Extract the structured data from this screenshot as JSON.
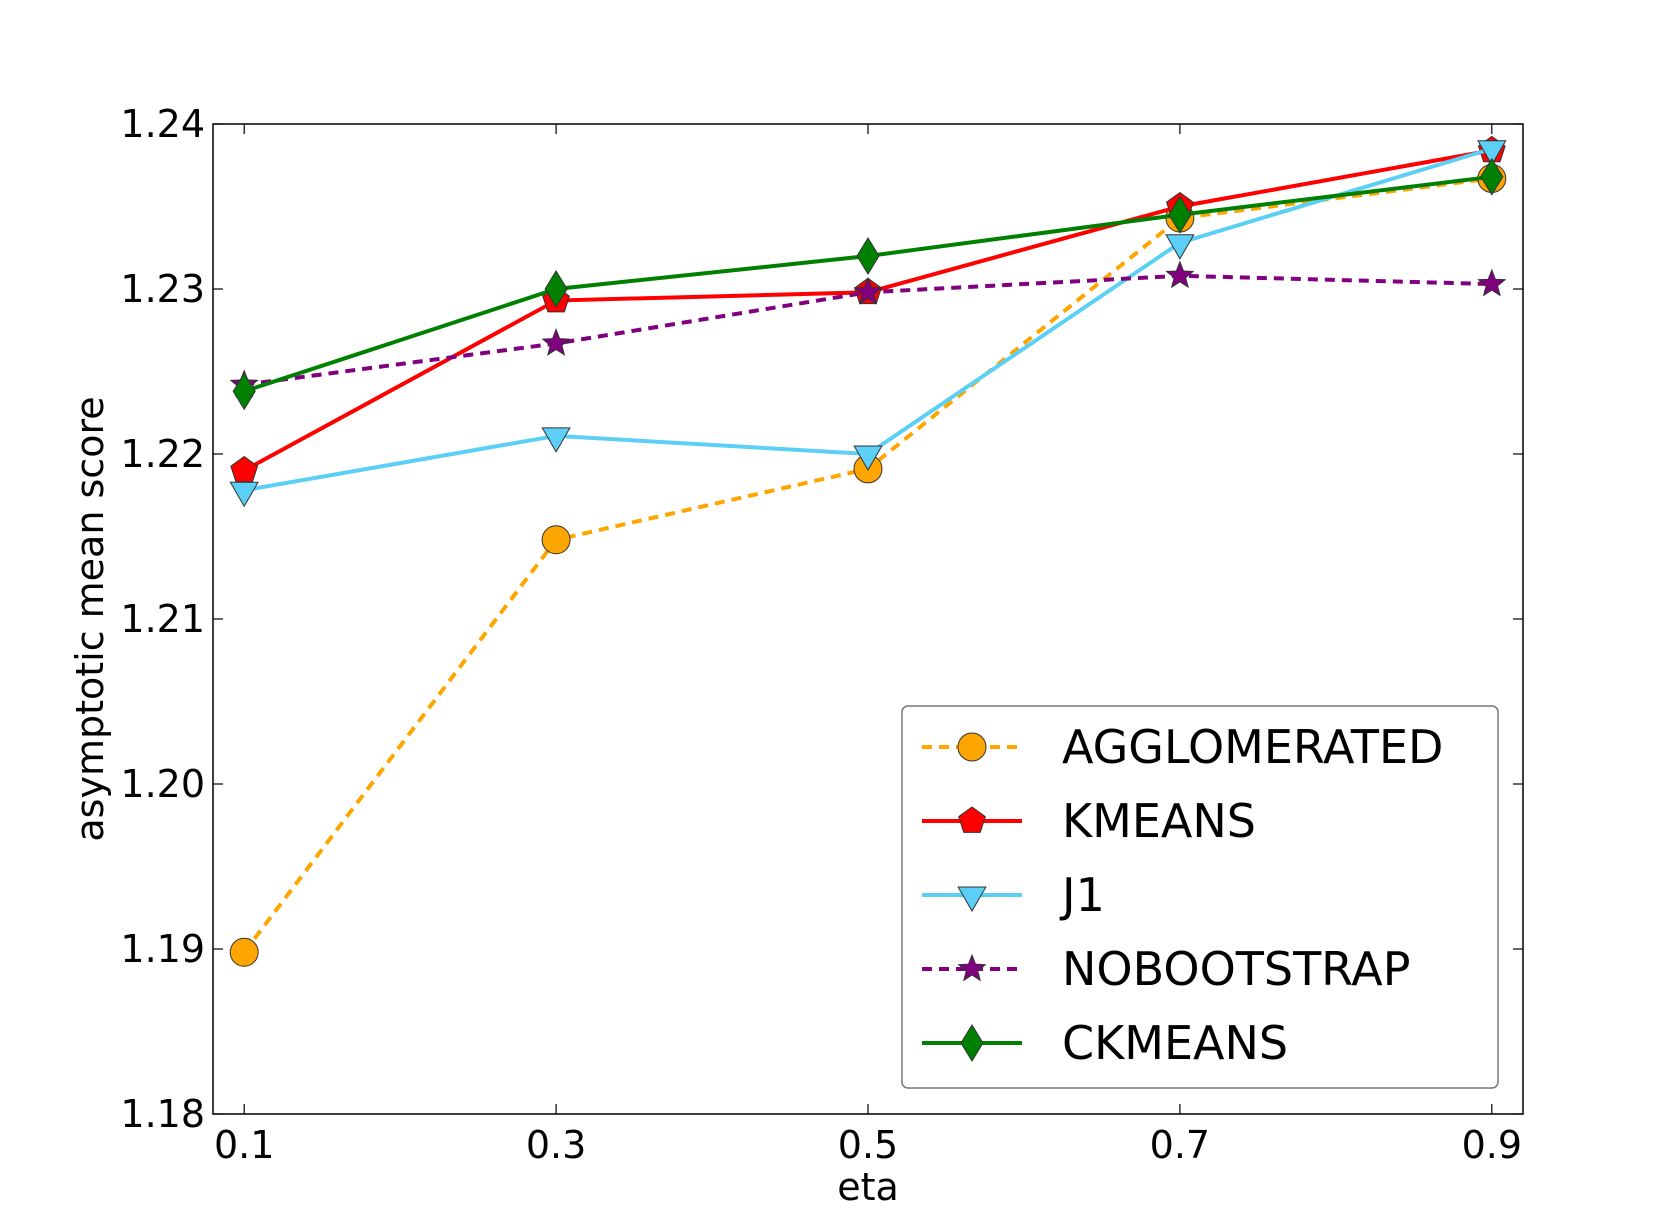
{
  "chart_data": {
    "type": "line",
    "xlabel": "eta",
    "ylabel": "asymptotic mean score",
    "x": [
      0.1,
      0.3,
      0.5,
      0.7,
      0.9
    ],
    "x_tick_labels": [
      "0.1",
      "0.3",
      "0.5",
      "0.7",
      "0.9"
    ],
    "xlim": [
      0.08,
      0.92
    ],
    "ylim": [
      1.18,
      1.24
    ],
    "y_ticks": [
      1.18,
      1.19,
      1.2,
      1.21,
      1.22,
      1.23,
      1.24
    ],
    "y_tick_labels": [
      "1.18",
      "1.19",
      "1.20",
      "1.21",
      "1.22",
      "1.23",
      "1.24"
    ],
    "grid": false,
    "legend_position": "bottom-right",
    "series": [
      {
        "name": "AGGLOMERATED",
        "values": [
          1.1898,
          1.2148,
          1.2191,
          1.2343,
          1.2367
        ],
        "color": "#FFA500",
        "linestyle": "dashed",
        "marker": "circle"
      },
      {
        "name": "KMEANS",
        "values": [
          1.219,
          1.2293,
          1.2298,
          1.235,
          1.2384
        ],
        "color": "#FF0000",
        "linestyle": "solid",
        "marker": "pentagon"
      },
      {
        "name": "J1",
        "values": [
          1.2178,
          1.2211,
          1.22,
          1.2328,
          1.2385
        ],
        "color": "#5BCFF5",
        "linestyle": "solid",
        "marker": "triangle-down"
      },
      {
        "name": "NOBOOTSTRAP",
        "values": [
          1.2242,
          1.2267,
          1.2298,
          1.2308,
          1.2303
        ],
        "color": "#800080",
        "linestyle": "dashed",
        "marker": "star"
      },
      {
        "name": "CKMEANS",
        "values": [
          1.2238,
          1.23,
          1.232,
          1.2345,
          1.2368
        ],
        "color": "#008000",
        "linestyle": "solid",
        "marker": "diamond"
      }
    ]
  }
}
